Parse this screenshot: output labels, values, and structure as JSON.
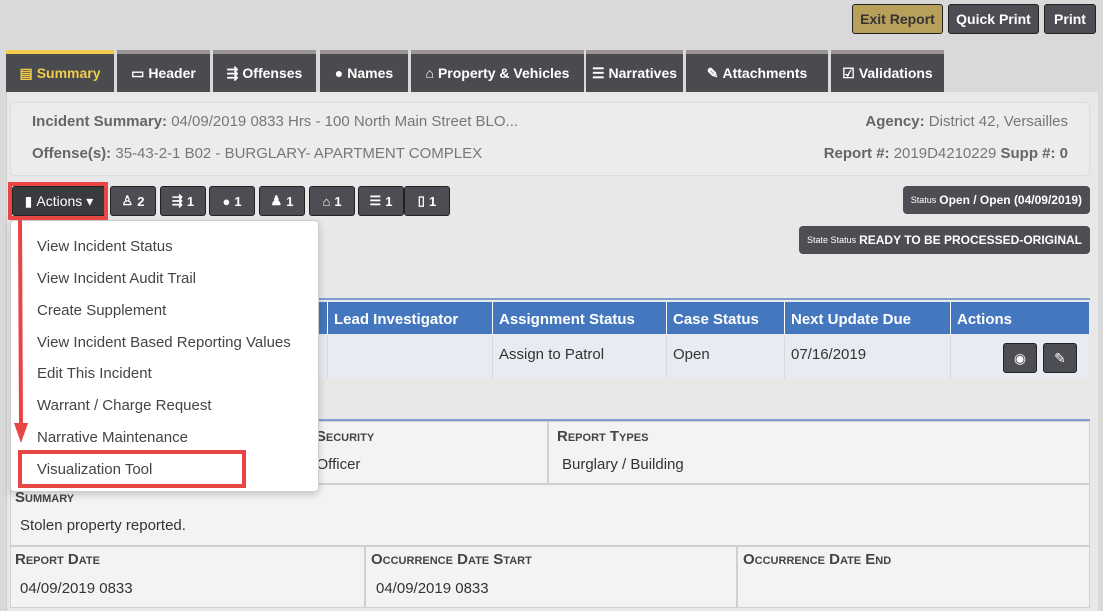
{
  "toolbar": {
    "exit_report": "Exit Report",
    "quick_print": "Quick Print",
    "print": "Print"
  },
  "colors": {
    "accent_yellow": "#f2cb4b",
    "exit_button": "#b9a05a",
    "table_header": "#4477bd",
    "highlight_red": "#e84545",
    "dark_button": "#4d4e53"
  },
  "tabs": [
    {
      "label": "Summary",
      "icon": "clipboard-icon",
      "active": true
    },
    {
      "label": "Header",
      "icon": "window-icon"
    },
    {
      "label": "Offenses",
      "icon": "offense-icon"
    },
    {
      "label": "Names",
      "icon": "user-icon"
    },
    {
      "label": "Property & Vehicles",
      "icon": "car-house-icon"
    },
    {
      "label": "Narratives",
      "icon": "lines-icon"
    },
    {
      "label": "Attachments",
      "icon": "paperclip-icon"
    },
    {
      "label": "Validations",
      "icon": "clipboard-check-icon"
    }
  ],
  "summary": {
    "incident_label": "Incident Summary:",
    "incident_value": "04/09/2019 0833 Hrs - 100 North Main Street BLO...",
    "offense_label": "Offense(s):",
    "offense_value": "35-43-2-1 B02 - BURGLARY- APARTMENT COMPLEX",
    "agency_label": "Agency:",
    "agency_value": "District 42, Versailles",
    "report_label": "Report #:",
    "report_value": "2019D4210229",
    "supp_label": "Supp #:",
    "supp_value": "0"
  },
  "actions_button": "Actions",
  "count_badges": [
    {
      "icon": "officer-icon",
      "count": "2"
    },
    {
      "icon": "offense-icon",
      "count": "1"
    },
    {
      "icon": "person-icon",
      "count": "1"
    },
    {
      "icon": "suspect-icon",
      "count": "1"
    },
    {
      "icon": "car-house-icon",
      "count": "1"
    },
    {
      "icon": "lines-icon",
      "count": "1"
    },
    {
      "icon": "document-icon",
      "count": "1"
    }
  ],
  "status": {
    "label": "Status",
    "value": "Open / Open (04/09/2019)"
  },
  "state_status": {
    "label": "State Status",
    "value": "READY TO BE PROCESSED-ORIGINAL"
  },
  "menu": [
    "View Incident Status",
    "View Incident Audit Trail",
    "Create Supplement",
    "View Incident Based Reporting Values",
    "Edit This Incident",
    "Warrant / Charge Request",
    "Narrative Maintenance",
    "Visualization Tool"
  ],
  "table": {
    "headers": [
      "Lead Investigator",
      "Assignment Status",
      "Case Status",
      "Next Update Due",
      "Actions"
    ],
    "row": [
      "",
      "Assign to Patrol",
      "Open",
      "07/16/2019"
    ]
  },
  "details": {
    "security_fragment": "t Security",
    "security_value_fragment": "l Officer",
    "report_types_label": "Report Types",
    "report_types_value": "Burglary / Building",
    "summary_label": "Summary",
    "summary_value": "Stolen property reported.",
    "report_date_label": "Report Date",
    "report_date_value": "04/09/2019 0833",
    "occ_start_label": "Occurrence Date Start",
    "occ_start_value": "04/09/2019 0833",
    "occ_end_label": "Occurrence Date End",
    "occ_end_value": ""
  }
}
